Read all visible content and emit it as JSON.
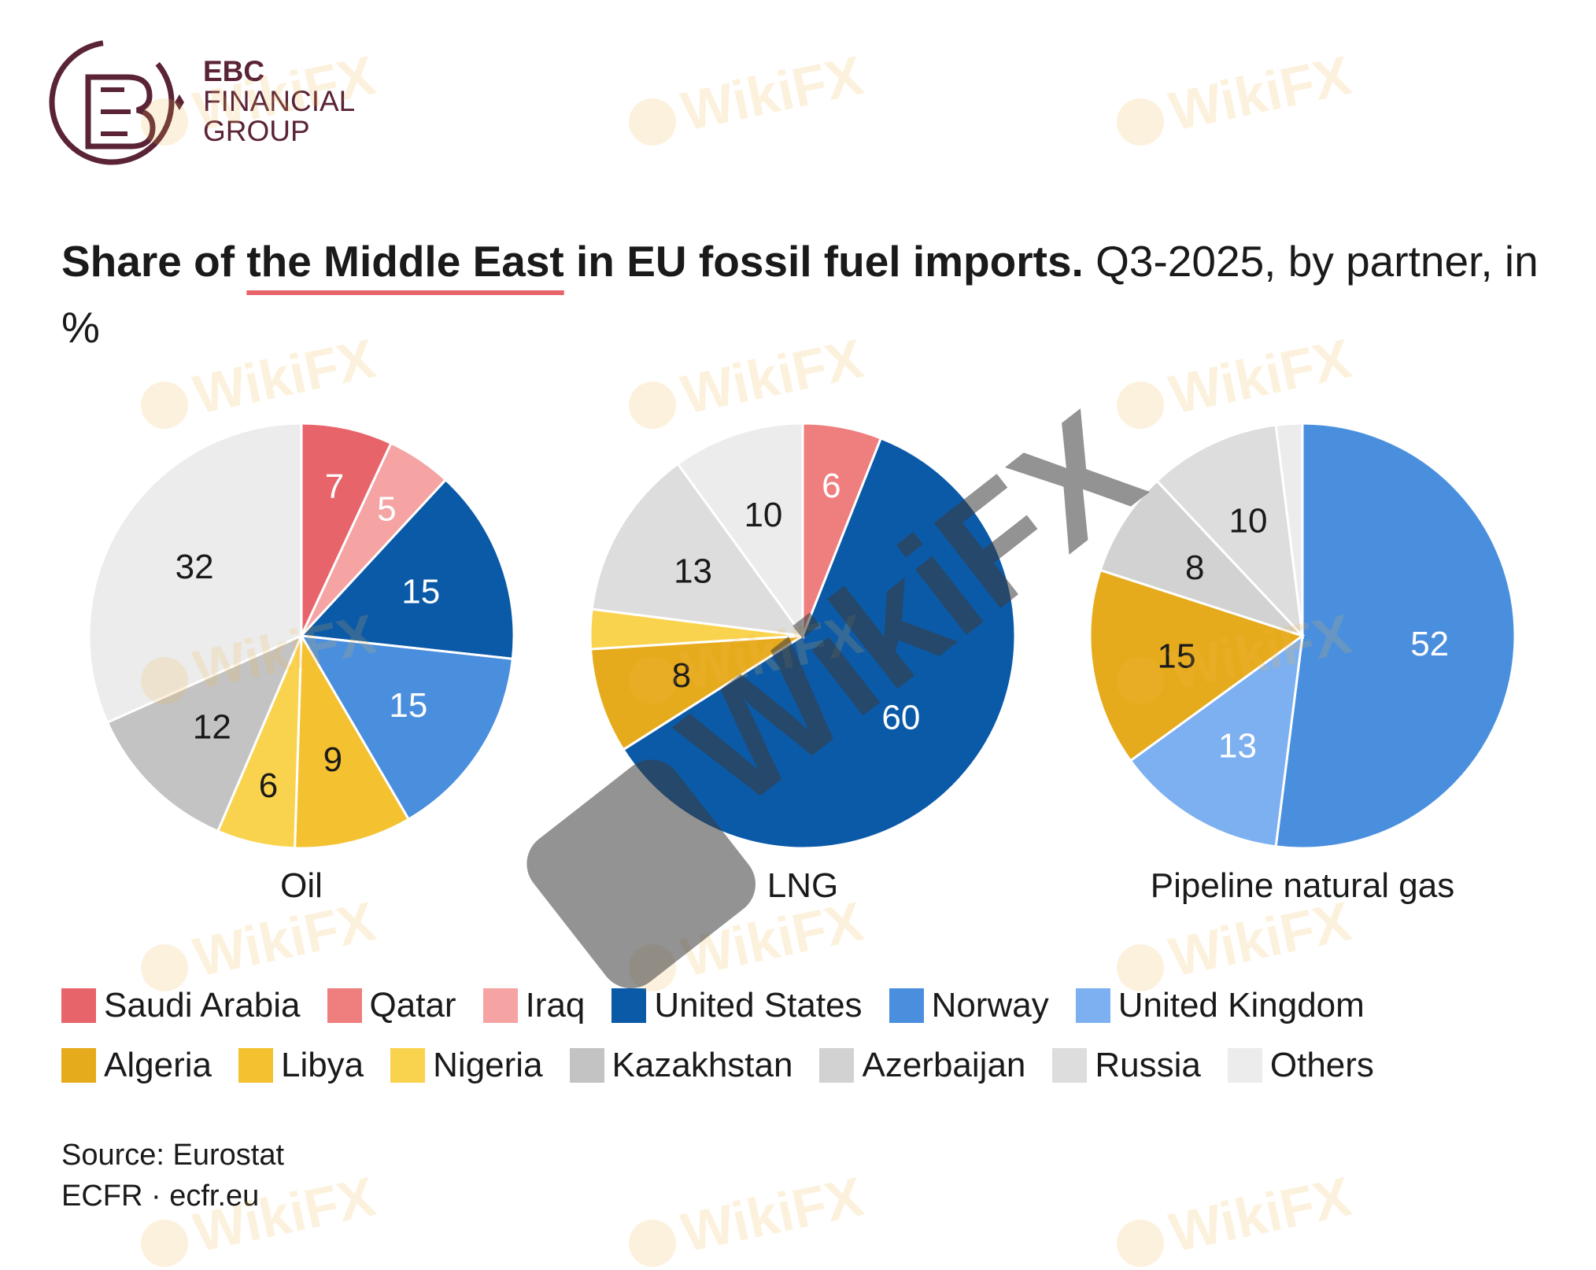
{
  "brand": {
    "line1": "EBC",
    "line2": "FINANCIAL",
    "line3": "GROUP"
  },
  "heading": {
    "prefix": "Share of ",
    "underlined": "the Middle East",
    "suffix": " in EU fossil fuel imports.",
    "rest": " Q3-2025, by partner, in %"
  },
  "watermark_text": "WikiFX",
  "chart_data": [
    {
      "type": "pie",
      "label": "Oil",
      "slices": [
        {
          "partner": "Saudi Arabia",
          "value": 7,
          "label": "7"
        },
        {
          "partner": "Iraq",
          "value": 5,
          "label": "5"
        },
        {
          "partner": "United States",
          "value": 15,
          "label": "15"
        },
        {
          "partner": "Norway",
          "value": 15,
          "label": "15"
        },
        {
          "partner": "Libya",
          "value": 9,
          "label": "9"
        },
        {
          "partner": "Nigeria",
          "value": 6,
          "label": "6"
        },
        {
          "partner": "Kazakhstan",
          "value": 12,
          "label": "12"
        },
        {
          "partner": "Others",
          "value": 32,
          "label": "32"
        }
      ]
    },
    {
      "type": "pie",
      "label": "LNG",
      "slices": [
        {
          "partner": "Qatar",
          "value": 6,
          "label": "6"
        },
        {
          "partner": "United States",
          "value": 60,
          "label": "60"
        },
        {
          "partner": "Algeria",
          "value": 8,
          "label": "8"
        },
        {
          "partner": "Nigeria",
          "value": 3,
          "label": ""
        },
        {
          "partner": "Russia",
          "value": 13,
          "label": "13"
        },
        {
          "partner": "Others",
          "value": 10,
          "label": "10"
        }
      ]
    },
    {
      "type": "pie",
      "label": "Pipeline natural gas",
      "slices": [
        {
          "partner": "Norway",
          "value": 52,
          "label": "52"
        },
        {
          "partner": "United Kingdom",
          "value": 13,
          "label": "13"
        },
        {
          "partner": "Algeria",
          "value": 15,
          "label": "15"
        },
        {
          "partner": "Azerbaijan",
          "value": 8,
          "label": "8"
        },
        {
          "partner": "Russia",
          "value": 10,
          "label": "10"
        },
        {
          "partner": "Others",
          "value": 2,
          "label": ""
        }
      ]
    }
  ],
  "legend": [
    {
      "name": "Saudi Arabia",
      "color": "#e8646b"
    },
    {
      "name": "Qatar",
      "color": "#ef7e7e"
    },
    {
      "name": "Iraq",
      "color": "#f5a3a3"
    },
    {
      "name": "United States",
      "color": "#0b5aa8"
    },
    {
      "name": "Norway",
      "color": "#4a8fde"
    },
    {
      "name": "United Kingdom",
      "color": "#7db0f0"
    },
    {
      "name": "Algeria",
      "color": "#e6ab1d"
    },
    {
      "name": "Libya",
      "color": "#f4c130"
    },
    {
      "name": "Nigeria",
      "color": "#fad34e"
    },
    {
      "name": "Kazakhstan",
      "color": "#c3c3c3"
    },
    {
      "name": "Azerbaijan",
      "color": "#d2d2d2"
    },
    {
      "name": "Russia",
      "color": "#dddddd"
    },
    {
      "name": "Others",
      "color": "#ececec"
    }
  ],
  "source": {
    "line1": "Source: Eurostat",
    "line2": "ECFR · ecfr.eu"
  }
}
